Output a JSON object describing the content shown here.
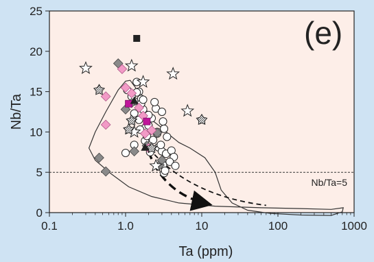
{
  "chart_data": {
    "type": "scatter",
    "panel_label": "(e)",
    "xlabel": "Ta (ppm)",
    "ylabel": "Nb/Ta",
    "x_scale": "log",
    "xlim": [
      0.1,
      1000
    ],
    "ylim": [
      0,
      25
    ],
    "x_ticks": [
      "0.1",
      "1.0",
      "10",
      "100",
      "1000"
    ],
    "y_ticks": [
      "0",
      "5",
      "10",
      "15",
      "20",
      "25"
    ],
    "grid": false,
    "reference_line": {
      "y": 5,
      "label": "Nb/Ta=5"
    },
    "colors": {
      "background": "#cfe3f3",
      "plot_area": "#fdeee8",
      "pink": "#f29ac6",
      "magenta": "#c0159a",
      "gray": "#8a8a8a",
      "black": "#222222"
    },
    "series": [
      {
        "marker": "open-circle",
        "points": [
          [
            1.05,
            15.2
          ],
          [
            1.3,
            13.8
          ],
          [
            1.4,
            16.2
          ],
          [
            1.5,
            15.0
          ],
          [
            1.6,
            14.1
          ],
          [
            1.7,
            12.8
          ],
          [
            1.5,
            11.5
          ],
          [
            1.8,
            10.5
          ],
          [
            2.0,
            10.8
          ],
          [
            2.2,
            11.7
          ],
          [
            2.5,
            12.9
          ],
          [
            3.0,
            12.5
          ],
          [
            3.1,
            11.3
          ],
          [
            3.2,
            10.4
          ],
          [
            2.6,
            9.8
          ],
          [
            2.3,
            9.0
          ],
          [
            2.7,
            8.1
          ],
          [
            3.0,
            7.6
          ],
          [
            3.4,
            7.3
          ],
          [
            4.0,
            7.7
          ],
          [
            4.3,
            6.9
          ],
          [
            3.8,
            6.3
          ],
          [
            3.1,
            5.9
          ],
          [
            3.2,
            4.9
          ],
          [
            1.0,
            7.4
          ],
          [
            1.3,
            8.4
          ],
          [
            1.8,
            8.9
          ],
          [
            2.0,
            12.1
          ],
          [
            1.6,
            13.5
          ],
          [
            1.3,
            12.3
          ],
          [
            2.4,
            13.7
          ],
          [
            1.4,
            14.9
          ],
          [
            1.2,
            14.4
          ],
          [
            3.5,
            9.4
          ],
          [
            2.9,
            8.4
          ],
          [
            4.5,
            5.8
          ],
          [
            1.9,
            9.5
          ],
          [
            2.1,
            7.5
          ],
          [
            1.55,
            10.3
          ],
          [
            2.6,
            10.0
          ],
          [
            3.3,
            5.2
          ],
          [
            1.7,
            14.0
          ]
        ]
      },
      {
        "marker": "gray-diamond",
        "points": [
          [
            0.8,
            18.5
          ],
          [
            1.0,
            12.8
          ],
          [
            1.3,
            7.6
          ],
          [
            1.9,
            8.3
          ],
          [
            2.6,
            9.9
          ],
          [
            2.8,
            5.9
          ],
          [
            0.45,
            6.8
          ],
          [
            0.55,
            5.1
          ],
          [
            1.2,
            13.6
          ],
          [
            3.0,
            6.5
          ]
        ]
      },
      {
        "marker": "pink-diamond",
        "points": [
          [
            0.9,
            17.8
          ],
          [
            0.55,
            14.4
          ],
          [
            0.55,
            10.9
          ],
          [
            1.0,
            15.5
          ],
          [
            1.5,
            13.0
          ],
          [
            1.7,
            12.0
          ],
          [
            1.8,
            9.8
          ],
          [
            2.0,
            8.0
          ],
          [
            1.2,
            14.8
          ],
          [
            2.2,
            10.2
          ]
        ]
      },
      {
        "marker": "magenta-square",
        "points": [
          [
            1.1,
            13.5
          ],
          [
            1.9,
            11.3
          ]
        ]
      },
      {
        "marker": "black-square",
        "points": [
          [
            1.4,
            21.6
          ]
        ]
      },
      {
        "marker": "black-triangle",
        "points": [
          [
            1.3,
            13.9
          ],
          [
            1.8,
            8.1
          ]
        ]
      },
      {
        "marker": "open-star",
        "points": [
          [
            0.3,
            17.9
          ],
          [
            1.2,
            18.2
          ],
          [
            1.7,
            16.2
          ],
          [
            4.2,
            17.2
          ],
          [
            6.5,
            12.6
          ],
          [
            1.3,
            10.0
          ],
          [
            2.5,
            5.8
          ]
        ]
      },
      {
        "marker": "hatched-star",
        "points": [
          [
            0.45,
            15.2
          ],
          [
            1.2,
            11.4
          ],
          [
            2.2,
            8.0
          ],
          [
            10.0,
            11.5
          ],
          [
            1.1,
            10.3
          ]
        ]
      }
    ]
  }
}
